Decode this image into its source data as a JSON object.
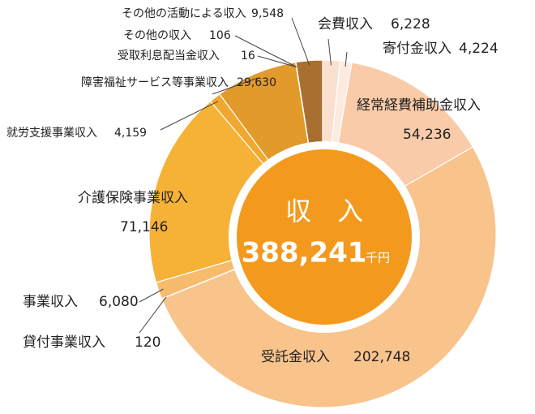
{
  "chart_data": {
    "type": "pie",
    "categories": [
      "会費収入",
      "寄付金収入",
      "経常経費補助金収入",
      "受託金収入",
      "貸付事業収入",
      "事業収入",
      "介護保険事業収入",
      "就労支援事業収入",
      "障害福祉サービス等事業収入",
      "受取利息配当金収入",
      "その他の収入",
      "その他の活動による収入"
    ],
    "values": [
      6228,
      4224,
      54236,
      202748,
      120,
      6080,
      71146,
      4159,
      29630,
      16,
      106,
      9548
    ],
    "value_labels": [
      "6,228",
      "4,224",
      "54,236",
      "202,748",
      "120",
      "6,080",
      "71,146",
      "4,159",
      "29,630",
      "16",
      "106",
      "9,548"
    ],
    "colors": [
      "#fbe0cf",
      "#fdebe0",
      "#f9cba8",
      "#f9c38c",
      "#f5b46a",
      "#f7bb6c",
      "#f6b236",
      "#f0a830",
      "#e29a2b",
      "#c98b3b",
      "#bb7e36",
      "#a86f30"
    ],
    "center_title": "収　入",
    "total_label": "388,241",
    "unit": "千円"
  }
}
